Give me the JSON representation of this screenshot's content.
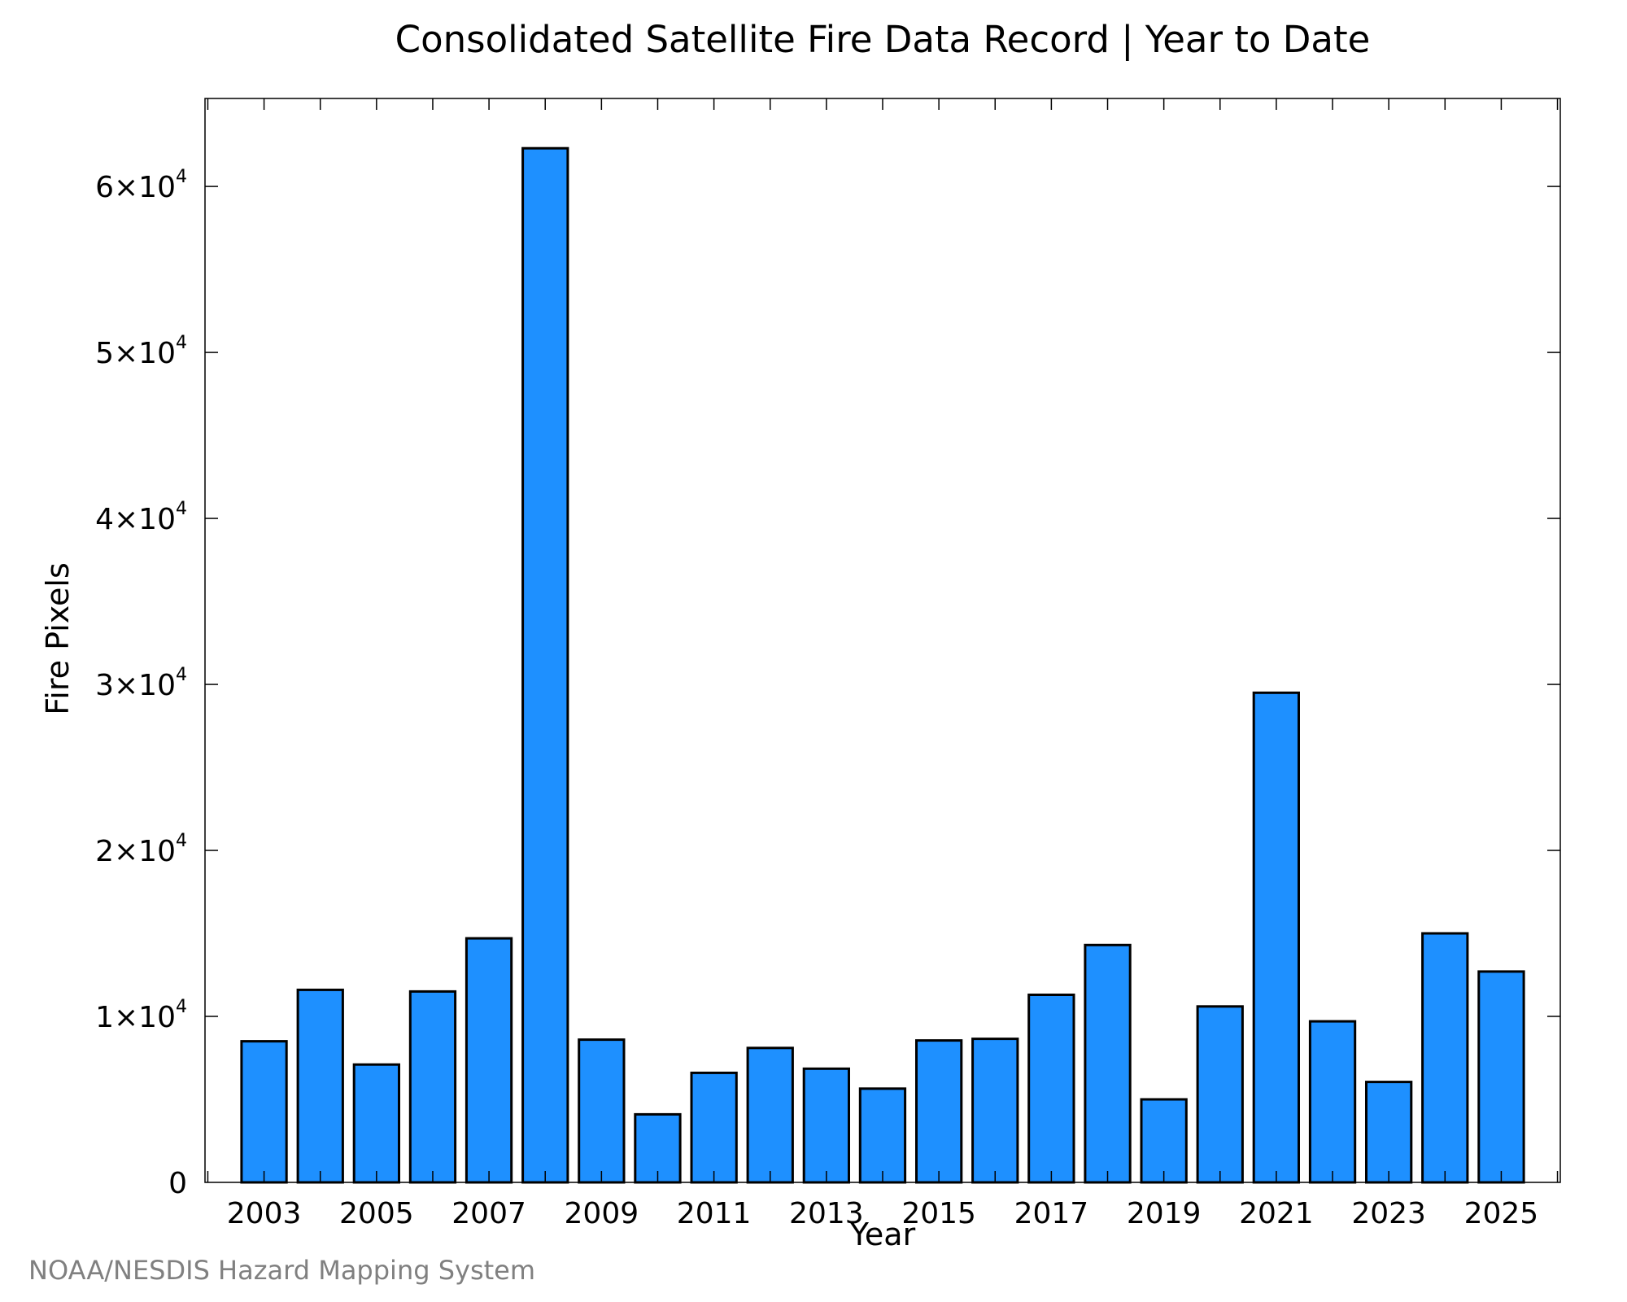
{
  "chart_data": {
    "type": "bar",
    "title": "Consolidated Satellite Fire Data Record | Year to Date",
    "xlabel": "Year",
    "ylabel": "Fire Pixels",
    "x": [
      2003,
      2004,
      2005,
      2006,
      2007,
      2008,
      2009,
      2010,
      2011,
      2012,
      2013,
      2014,
      2015,
      2016,
      2017,
      2018,
      2019,
      2020,
      2021,
      2022,
      2023,
      2024,
      2025
    ],
    "values": [
      8500,
      11600,
      7100,
      11500,
      14700,
      62300,
      8600,
      4100,
      6600,
      8100,
      6850,
      5650,
      8550,
      8650,
      11300,
      14300,
      5000,
      10600,
      29500,
      9700,
      6050,
      15000,
      12700
    ],
    "xlim": [
      2001.95,
      2026.05
    ],
    "ylim": [
      0,
      65300
    ],
    "x_ticks": [
      2003,
      2005,
      2007,
      2009,
      2011,
      2013,
      2015,
      2017,
      2019,
      2021,
      2023,
      2025
    ],
    "y_ticks": [
      {
        "value": 0,
        "mantissa": "0",
        "exp": ""
      },
      {
        "value": 10000,
        "mantissa": "1×10",
        "exp": "4"
      },
      {
        "value": 20000,
        "mantissa": "2×10",
        "exp": "4"
      },
      {
        "value": 30000,
        "mantissa": "3×10",
        "exp": "4"
      },
      {
        "value": 40000,
        "mantissa": "4×10",
        "exp": "4"
      },
      {
        "value": 50000,
        "mantissa": "5×10",
        "exp": "4"
      },
      {
        "value": 60000,
        "mantissa": "6×10",
        "exp": "4"
      }
    ],
    "bar_color": "#1e90ff",
    "bar_edge_color": "#000000",
    "grid": false,
    "credit": "NOAA/NESDIS Hazard Mapping System"
  }
}
